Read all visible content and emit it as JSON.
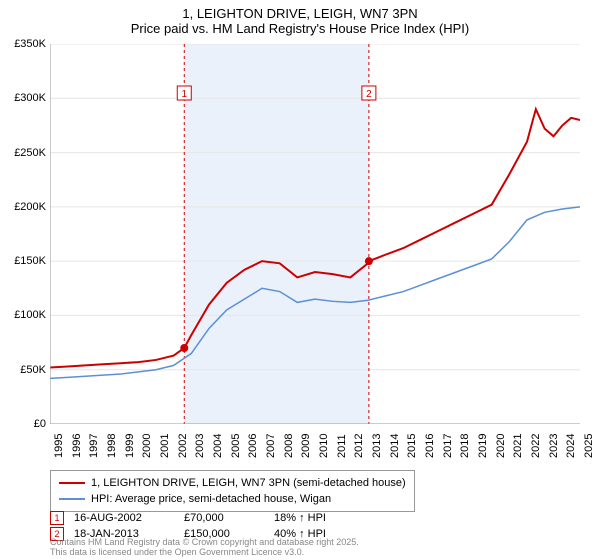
{
  "title": {
    "line1": "1, LEIGHTON DRIVE, LEIGH, WN7 3PN",
    "line2": "Price paid vs. HM Land Registry's House Price Index (HPI)"
  },
  "chart": {
    "type": "line",
    "ylim": [
      0,
      350000
    ],
    "ytick_step": 50000,
    "y_ticks": [
      "£0",
      "£50K",
      "£100K",
      "£150K",
      "£200K",
      "£250K",
      "£300K",
      "£350K"
    ],
    "xlim": [
      1995,
      2025
    ],
    "x_ticks": [
      1995,
      1996,
      1997,
      1998,
      1999,
      2000,
      2001,
      2002,
      2003,
      2004,
      2005,
      2006,
      2007,
      2008,
      2009,
      2010,
      2011,
      2012,
      2013,
      2014,
      2015,
      2016,
      2017,
      2018,
      2019,
      2020,
      2021,
      2022,
      2023,
      2024,
      2025
    ],
    "background_color": "#ffffff",
    "grid_color": "#e6e6e6",
    "shaded_band": {
      "from": 2002.6,
      "to": 2013.05,
      "color": "#eaf1fa"
    },
    "sale_guides": [
      {
        "x": 2002.6,
        "label": "1"
      },
      {
        "x": 2013.05,
        "label": "2"
      }
    ],
    "series": [
      {
        "name": "price_paid",
        "label": "1, LEIGHTON DRIVE, LEIGH, WN7 3PN (semi-detached house)",
        "color": "#cc0000",
        "width": 2,
        "points": [
          [
            1995,
            52000
          ],
          [
            1996,
            53000
          ],
          [
            1997,
            54000
          ],
          [
            1998,
            55000
          ],
          [
            1999,
            56000
          ],
          [
            2000,
            57000
          ],
          [
            2001,
            59000
          ],
          [
            2002,
            63000
          ],
          [
            2002.6,
            70000
          ],
          [
            2003,
            82000
          ],
          [
            2004,
            110000
          ],
          [
            2005,
            130000
          ],
          [
            2006,
            142000
          ],
          [
            2007,
            150000
          ],
          [
            2008,
            148000
          ],
          [
            2009,
            135000
          ],
          [
            2010,
            140000
          ],
          [
            2011,
            138000
          ],
          [
            2012,
            135000
          ],
          [
            2013,
            148000
          ],
          [
            2013.05,
            150000
          ],
          [
            2014,
            156000
          ],
          [
            2015,
            162000
          ],
          [
            2016,
            170000
          ],
          [
            2017,
            178000
          ],
          [
            2018,
            186000
          ],
          [
            2019,
            194000
          ],
          [
            2020,
            202000
          ],
          [
            2021,
            230000
          ],
          [
            2022,
            260000
          ],
          [
            2022.5,
            290000
          ],
          [
            2023,
            272000
          ],
          [
            2023.5,
            265000
          ],
          [
            2024,
            275000
          ],
          [
            2024.5,
            282000
          ],
          [
            2025,
            280000
          ]
        ],
        "markers": [
          {
            "x": 2002.6,
            "y": 70000
          },
          {
            "x": 2013.05,
            "y": 150000
          }
        ]
      },
      {
        "name": "hpi",
        "label": "HPI: Average price, semi-detached house, Wigan",
        "color": "#5b8fd6",
        "width": 1.5,
        "points": [
          [
            1995,
            42000
          ],
          [
            1996,
            43000
          ],
          [
            1997,
            44000
          ],
          [
            1998,
            45000
          ],
          [
            1999,
            46000
          ],
          [
            2000,
            48000
          ],
          [
            2001,
            50000
          ],
          [
            2002,
            54000
          ],
          [
            2003,
            65000
          ],
          [
            2004,
            88000
          ],
          [
            2005,
            105000
          ],
          [
            2006,
            115000
          ],
          [
            2007,
            125000
          ],
          [
            2008,
            122000
          ],
          [
            2009,
            112000
          ],
          [
            2010,
            115000
          ],
          [
            2011,
            113000
          ],
          [
            2012,
            112000
          ],
          [
            2013,
            114000
          ],
          [
            2014,
            118000
          ],
          [
            2015,
            122000
          ],
          [
            2016,
            128000
          ],
          [
            2017,
            134000
          ],
          [
            2018,
            140000
          ],
          [
            2019,
            146000
          ],
          [
            2020,
            152000
          ],
          [
            2021,
            168000
          ],
          [
            2022,
            188000
          ],
          [
            2023,
            195000
          ],
          [
            2024,
            198000
          ],
          [
            2025,
            200000
          ]
        ]
      }
    ]
  },
  "legend": {
    "rows": [
      {
        "color": "#cc0000",
        "label": "1, LEIGHTON DRIVE, LEIGH, WN7 3PN (semi-detached house)"
      },
      {
        "color": "#5b8fd6",
        "label": "HPI: Average price, semi-detached house, Wigan"
      }
    ]
  },
  "sales": [
    {
      "marker": "1",
      "date": "16-AUG-2002",
      "price": "£70,000",
      "diff": "18% ↑ HPI"
    },
    {
      "marker": "2",
      "date": "18-JAN-2013",
      "price": "£150,000",
      "diff": "40% ↑ HPI"
    }
  ],
  "copyright": {
    "line1": "Contains HM Land Registry data © Crown copyright and database right 2025.",
    "line2": "This data is licensed under the Open Government Licence v3.0."
  }
}
